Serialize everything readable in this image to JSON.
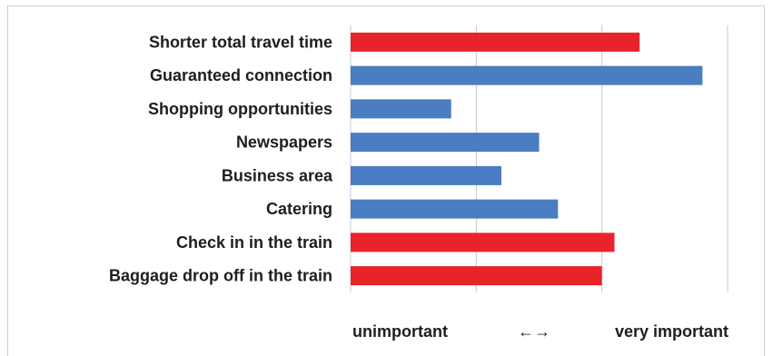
{
  "chart_data": {
    "type": "bar",
    "orientation": "horizontal",
    "categories": [
      "Shorter total travel time",
      "Guaranteed connection",
      "Shopping opportunities",
      "Newspapers",
      "Business area",
      "Catering",
      "Check in in the train",
      "Baggage drop off in the train"
    ],
    "values": [
      2.3,
      2.8,
      0.8,
      1.5,
      1.2,
      1.65,
      2.1,
      2.0
    ],
    "bar_colors": [
      "#e8232a",
      "#4a7dc1",
      "#4a7dc1",
      "#4a7dc1",
      "#4a7dc1",
      "#4a7dc1",
      "#e8232a",
      "#e8232a"
    ],
    "xlim": [
      0,
      3
    ],
    "grid": true,
    "axis_note": {
      "left": "unimportant",
      "arrow": "←→",
      "right": "very important"
    }
  }
}
